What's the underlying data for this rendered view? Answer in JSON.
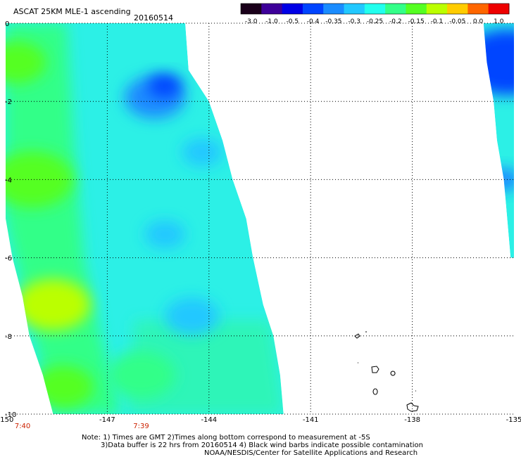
{
  "header": {
    "title": "ASCAT 25KM MLE-1 ascending",
    "date": "20160514"
  },
  "colorbar": {
    "labels": [
      "-3.0",
      "-1.0",
      "-0.5",
      "-0.4",
      "-0.35",
      "-0.3",
      "-0.25",
      "-0.2",
      "-0.15",
      "-0.1",
      "-0.05",
      "0.0",
      "1.0"
    ],
    "colors": [
      "#1a001a",
      "#3d0099",
      "#0000e6",
      "#0044ff",
      "#1a8cff",
      "#22c8ff",
      "#22ffee",
      "#33ff88",
      "#55ff22",
      "#bbff00",
      "#ffcc00",
      "#ff6600",
      "#ee0000"
    ]
  },
  "chart_data": {
    "type": "heatmap",
    "x_ticks": [
      "-150",
      "-147",
      "-144",
      "-141",
      "-138",
      "-135"
    ],
    "y_ticks": [
      "0",
      "-2",
      "-4",
      "-6",
      "-8",
      "-10"
    ],
    "xlim": [
      -150,
      -135
    ],
    "ylim": [
      -10,
      0
    ],
    "grid": true,
    "time_labels": [
      {
        "lon": -149.5,
        "text": "7:40"
      },
      {
        "lon": -146.0,
        "text": "7:39"
      }
    ],
    "swaths": [
      {
        "name": "left",
        "polygon": [
          [
            -150,
            0
          ],
          [
            -144.7,
            0
          ],
          [
            -144.6,
            -1.2
          ],
          [
            -144.0,
            -2.0
          ],
          [
            -143.6,
            -3.0
          ],
          [
            -143.3,
            -4.0
          ],
          [
            -142.9,
            -5.0
          ],
          [
            -142.7,
            -6.0
          ],
          [
            -142.4,
            -7.2
          ],
          [
            -142.1,
            -8.0
          ],
          [
            -141.9,
            -9.0
          ],
          [
            -141.8,
            -10.0
          ],
          [
            -148.6,
            -10.0
          ],
          [
            -148.9,
            -9.0
          ],
          [
            -149.3,
            -8.0
          ],
          [
            -149.5,
            -7.0
          ],
          [
            -149.8,
            -6.0
          ],
          [
            -150,
            -5.0
          ]
        ],
        "fields": [
          {
            "lon": -149.2,
            "lat": -4.0,
            "r": 1.2,
            "level": "-0.15"
          },
          {
            "lon": -148.6,
            "lat": -7.2,
            "r": 1.1,
            "level": "-0.1"
          },
          {
            "lon": -148.3,
            "lat": -9.3,
            "r": 0.9,
            "level": "-0.15"
          },
          {
            "lon": -149.7,
            "lat": -1.0,
            "r": 0.9,
            "level": "-0.15"
          },
          {
            "lon": -145.6,
            "lat": -1.9,
            "r": 0.9,
            "level": "-0.35"
          },
          {
            "lon": -145.3,
            "lat": -1.6,
            "r": 0.5,
            "level": "-0.4"
          },
          {
            "lon": -144.5,
            "lat": -7.5,
            "r": 0.8,
            "level": "-0.3"
          },
          {
            "lon": -144.2,
            "lat": -3.3,
            "r": 0.6,
            "level": "-0.3"
          },
          {
            "lon": -145.3,
            "lat": -5.4,
            "r": 0.6,
            "level": "-0.3"
          },
          {
            "lon": -146.0,
            "lat": -9.0,
            "r": 1.0,
            "level": "-0.2"
          }
        ]
      },
      {
        "name": "right",
        "polygon": [
          [
            -135.9,
            0
          ],
          [
            -135,
            0
          ],
          [
            -135,
            -6.0
          ],
          [
            -135.1,
            -6.0
          ],
          [
            -135.2,
            -5.0
          ],
          [
            -135.3,
            -4.0
          ],
          [
            -135.5,
            -3.0
          ],
          [
            -135.6,
            -2.0
          ],
          [
            -135.8,
            -1.0
          ]
        ],
        "fields": [
          {
            "lon": -135.2,
            "lat": -1.0,
            "r": 1.4,
            "level": "-0.4"
          },
          {
            "lon": -135.3,
            "lat": -4.0,
            "r": 0.5,
            "level": "-0.35"
          }
        ]
      }
    ]
  },
  "footnote": {
    "line1": "Note: 1) Times are GMT 2)Times along bottom correspond to measurement at -5S",
    "line2": "3)Data buffer is 22 hrs from 20160514 4) Black wind barbs indicate possible contamination",
    "line3": "NOAA/NESDIS/Center for Satellite Applications and Research"
  }
}
